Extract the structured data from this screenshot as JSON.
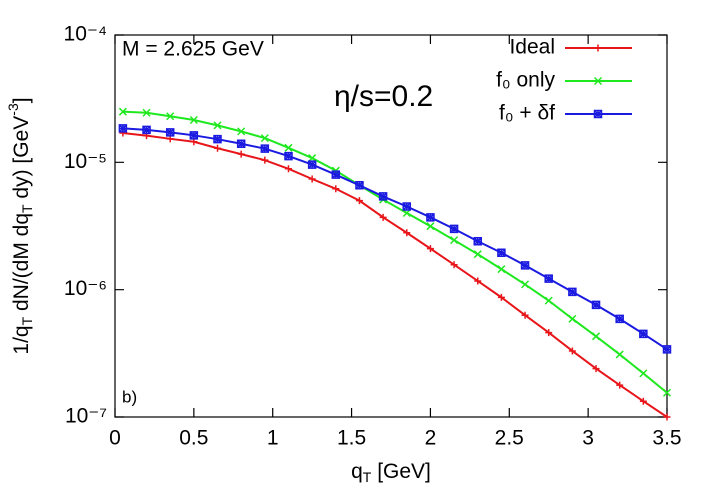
{
  "chart_data": {
    "type": "line",
    "xlabel": [
      "q",
      "T",
      " [GeV]"
    ],
    "ylabel": [
      "1/q",
      "T",
      " dN/(dM dq",
      "T",
      " dy) [GeV",
      "-3",
      "]"
    ],
    "annotations": [
      "M = 2.625 GeV",
      "η/s=0.2",
      "b)"
    ],
    "x": [
      0.05,
      0.2,
      0.35,
      0.5,
      0.65,
      0.8,
      0.95,
      1.1,
      1.25,
      1.4,
      1.55,
      1.7,
      1.85,
      2.0,
      2.15,
      2.3,
      2.45,
      2.6,
      2.75,
      2.9,
      3.05,
      3.2,
      3.35,
      3.5
    ],
    "series": [
      {
        "name": "Ideal",
        "color": "#e8161a",
        "marker": "plus",
        "values": [
          1.7e-05,
          1.62e-05,
          1.53e-05,
          1.45e-05,
          1.29e-05,
          1.16e-05,
          1.04e-05,
          8.9e-06,
          7.4e-06,
          6.2e-06,
          5e-06,
          3.7e-06,
          2.8e-06,
          2.1e-06,
          1.57e-06,
          1.17e-06,
          8.7e-07,
          6.3e-07,
          4.6e-07,
          3.3e-07,
          2.4e-07,
          1.78e-07,
          1.33e-07,
          1e-07
        ]
      },
      {
        "name": "f₀ only",
        "color": "#1ee81e",
        "marker": "cross",
        "values": [
          2.5e-05,
          2.45e-05,
          2.3e-05,
          2.15e-05,
          1.95e-05,
          1.75e-05,
          1.55e-05,
          1.3e-05,
          1.08e-05,
          8.6e-06,
          6.6e-06,
          5.1e-06,
          4e-06,
          3.15e-06,
          2.45e-06,
          1.9e-06,
          1.45e-06,
          1.1e-06,
          8.2e-07,
          5.9e-07,
          4.3e-07,
          3.1e-07,
          2.2e-07,
          1.55e-07
        ]
      },
      {
        "name": "f₀ + δf",
        "color": "#1a1ae0",
        "marker": "star",
        "values": [
          1.85e-05,
          1.8e-05,
          1.72e-05,
          1.63e-05,
          1.52e-05,
          1.4e-05,
          1.28e-05,
          1.12e-05,
          9.6e-06,
          8e-06,
          6.6e-06,
          5.4e-06,
          4.5e-06,
          3.7e-06,
          3e-06,
          2.4e-06,
          1.95e-06,
          1.55e-06,
          1.22e-06,
          9.6e-07,
          7.6e-07,
          5.9e-07,
          4.5e-07,
          3.4e-07
        ]
      }
    ],
    "xlim": [
      0,
      3.5
    ],
    "xticks": [
      0,
      0.5,
      1,
      1.5,
      2,
      2.5,
      3,
      3.5
    ],
    "ylim": [
      1e-07,
      0.0001
    ],
    "yscale": "log",
    "yticks": [
      {
        "value": 1e-07,
        "label": "10⁻⁷"
      },
      {
        "value": 1e-06,
        "label": "10⁻⁶"
      },
      {
        "value": 1e-05,
        "label": "10⁻⁵"
      },
      {
        "value": 0.0001,
        "label": "10⁻⁴"
      }
    ],
    "legend": "upper right"
  }
}
